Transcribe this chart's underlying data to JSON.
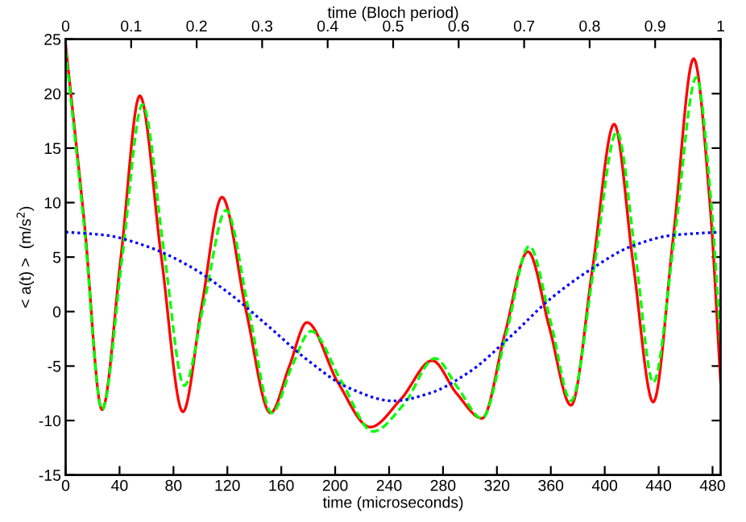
{
  "chart_data": {
    "type": "line",
    "xlabel": "time (microseconds)",
    "x2label": "time (Bloch period)",
    "ylabel": "< a(t) >  (m/s$^{2}$)",
    "xlim": [
      0,
      486
    ],
    "xticks": [
      0,
      40,
      80,
      120,
      160,
      200,
      240,
      280,
      320,
      360,
      400,
      440,
      480
    ],
    "x2lim": [
      0,
      1
    ],
    "x2ticks": [
      0,
      0.1,
      0.2,
      0.3,
      0.4,
      0.5,
      0.6,
      0.7,
      0.8,
      0.9,
      1
    ],
    "ylim": [
      -15,
      25
    ],
    "yticks": [
      -15,
      -10,
      -5,
      0,
      5,
      10,
      15,
      20,
      25
    ],
    "grid": false,
    "legend": false,
    "series": [
      {
        "color": "#ff0000",
        "line_style": "solid",
        "x": [
          0,
          14,
          27,
          41,
          55,
          71,
          87,
          101,
          116,
          134,
          152,
          166,
          179,
          202,
          226,
          249,
          272,
          290,
          309,
          326,
          343,
          359,
          375,
          391,
          407,
          421,
          436,
          451,
          466,
          478,
          486
        ],
        "values": [
          24.5,
          8,
          -9,
          5,
          19.8,
          5,
          -9.2,
          0.5,
          10.5,
          0,
          -9.3,
          -5,
          -1,
          -6.5,
          -10.6,
          -8,
          -4.5,
          -7.5,
          -9.8,
          -2,
          5.5,
          -1.5,
          -8.6,
          4,
          17.2,
          4.5,
          -8.3,
          7,
          23.2,
          10,
          -6.5
        ]
      },
      {
        "color": "#00ff00",
        "line_style": "dashed",
        "x": [
          0,
          14,
          27,
          42,
          57,
          73,
          88,
          103,
          119,
          136,
          153,
          168,
          182,
          205,
          228,
          251,
          274,
          291,
          309,
          327,
          344,
          360,
          375,
          392,
          409,
          423,
          436,
          452,
          468,
          479,
          486
        ],
        "values": [
          24,
          7.5,
          -9,
          5,
          19,
          5.5,
          -6.8,
          1,
          9.3,
          0,
          -9.3,
          -5,
          -1.8,
          -6.5,
          -11,
          -8.5,
          -4.3,
          -7,
          -9.8,
          -2,
          6,
          -1,
          -8.2,
          4,
          16.5,
          5,
          -6.5,
          7,
          21.5,
          10,
          -3
        ]
      },
      {
        "color": "#0000ff",
        "line_style": "dotted",
        "x": [
          0,
          30,
          60,
          90,
          120,
          150,
          180,
          210,
          243,
          270,
          300,
          330,
          360,
          390,
          420,
          450,
          486
        ],
        "values": [
          7.3,
          7,
          6,
          4.3,
          1.8,
          -1.3,
          -4.5,
          -7,
          -8.2,
          -7.5,
          -5.5,
          -2.3,
          1.2,
          3.9,
          6,
          7,
          7.3
        ]
      }
    ]
  }
}
